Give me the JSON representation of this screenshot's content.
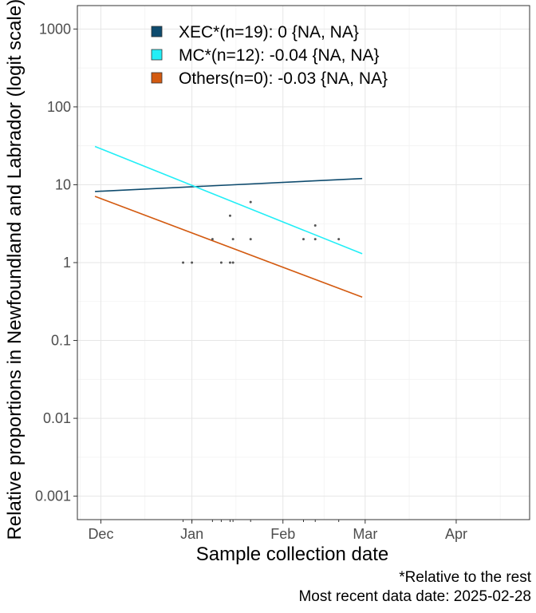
{
  "chart_data": {
    "type": "line",
    "ylabel": "Relative proportions in Newfoundland and Labrador (logit scale)*",
    "xlabel": "Sample collection date",
    "y_scale": "log",
    "ylim": [
      0.0005,
      2000
    ],
    "y_ticks": [
      {
        "value": 0.001,
        "label": "0.001"
      },
      {
        "value": 0.01,
        "label": "0.01"
      },
      {
        "value": 0.1,
        "label": "0.1"
      },
      {
        "value": 1,
        "label": "1"
      },
      {
        "value": 10,
        "label": "10"
      },
      {
        "value": 100,
        "label": "100"
      },
      {
        "value": 1000,
        "label": "1000"
      }
    ],
    "xlim": [
      "2024-11-23",
      "2025-04-26"
    ],
    "x_ticks": [
      {
        "value": "2024-12-01",
        "label": "Dec"
      },
      {
        "value": "2025-01-01",
        "label": "Jan"
      },
      {
        "value": "2025-02-01",
        "label": "Feb"
      },
      {
        "value": "2025-03-01",
        "label": "Mar"
      },
      {
        "value": "2025-04-01",
        "label": "Apr"
      }
    ],
    "grid": true,
    "legend_position": "top-left",
    "series": [
      {
        "name": "XEC*(n=19): 0 {NA, NA}",
        "color": "#0e4b6e",
        "x": [
          "2024-11-29",
          "2025-02-28"
        ],
        "y": [
          8.2,
          12
        ]
      },
      {
        "name": "MC*(n=12): -0.04 {NA, NA}",
        "color": "#22eef6",
        "x": [
          "2024-11-29",
          "2025-02-28"
        ],
        "y": [
          31,
          1.3
        ]
      },
      {
        "name": "Others(n=0): -0.03 {NA, NA}",
        "color": "#d35a10",
        "x": [
          "2024-11-29",
          "2025-02-28"
        ],
        "y": [
          7.1,
          0.36
        ]
      }
    ],
    "points": [
      {
        "x": "2024-12-29",
        "y": 1
      },
      {
        "x": "2025-01-01",
        "y": 1
      },
      {
        "x": "2025-01-08",
        "y": 2
      },
      {
        "x": "2025-01-11",
        "y": 1
      },
      {
        "x": "2025-01-14",
        "y": 4
      },
      {
        "x": "2025-01-14",
        "y": 1
      },
      {
        "x": "2025-01-15",
        "y": 2
      },
      {
        "x": "2025-01-15",
        "y": 1
      },
      {
        "x": "2025-01-21",
        "y": 6
      },
      {
        "x": "2025-01-21",
        "y": 2
      },
      {
        "x": "2025-02-08",
        "y": 2
      },
      {
        "x": "2025-02-12",
        "y": 3
      },
      {
        "x": "2025-02-12",
        "y": 2
      },
      {
        "x": "2025-02-20",
        "y": 2
      }
    ],
    "point_color": "#555555"
  },
  "captions": {
    "line1": "*Relative to the rest",
    "line2": "Most recent data date: 2025-02-28"
  }
}
